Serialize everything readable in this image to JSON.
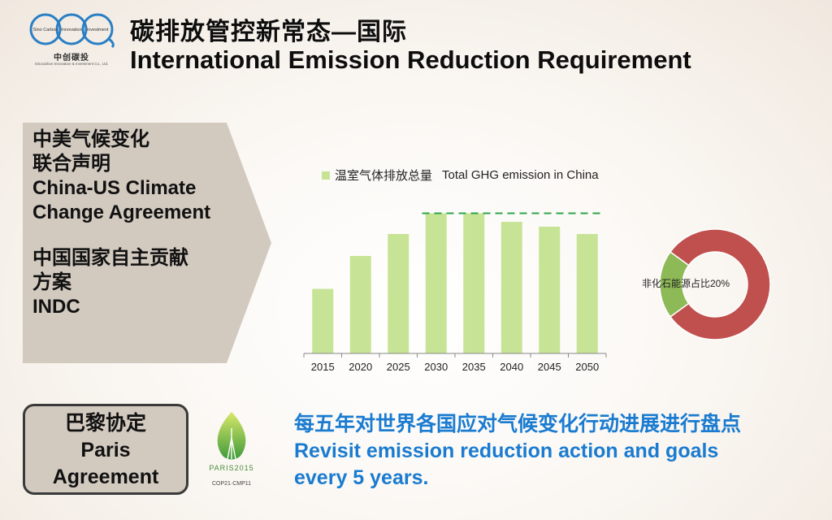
{
  "logo": {
    "ring_labels": [
      "Sino Carbon",
      "Innovation",
      "Investment"
    ],
    "cn_name": "中创碳投",
    "en_name": "Sinocarbon Innovation & Investment Co., Ltd."
  },
  "header": {
    "title_cn": "碳排放管控新常态—国际",
    "title_en": "International Emission Reduction Requirement"
  },
  "agreements": {
    "line1": "中美气候变化",
    "line2": "联合声明",
    "line3": "China-US Climate",
    "line4": "Change Agreement",
    "line5": "中国国家自主贡献",
    "line6": "方案",
    "line7": "INDC"
  },
  "chart_data": [
    {
      "type": "bar",
      "categories": [
        "2015",
        "2020",
        "2025",
        "2030",
        "2035",
        "2040",
        "2045",
        "2050"
      ],
      "series": [
        {
          "name": "温室气体排放总量",
          "values": [
            53,
            80,
            98,
            115,
            115,
            108,
            104,
            98
          ]
        }
      ],
      "annotation": "Total GHG emission in China",
      "reference_line": "peak",
      "ylim": [
        0,
        120
      ],
      "grid": false,
      "legend_position": "top-left",
      "colors": {
        "bar": "#c7e496",
        "peak_line": "#2ca44a"
      }
    },
    {
      "type": "pie",
      "label": "非化石能源占比20%",
      "values": [
        20,
        80
      ],
      "colors": [
        "#8db956",
        "#c0504d"
      ]
    }
  ],
  "paris": {
    "line1": "巴黎协定",
    "line2": "Paris",
    "line3": "Agreement",
    "logo_line1": "PARIS2015",
    "logo_line2": "COP21·CMP11"
  },
  "review": {
    "line1": "每五年对世界各国应对气候变化行动进展进行盘点",
    "line2": "Revisit emission reduction action and goals",
    "line3": "every 5 years."
  }
}
